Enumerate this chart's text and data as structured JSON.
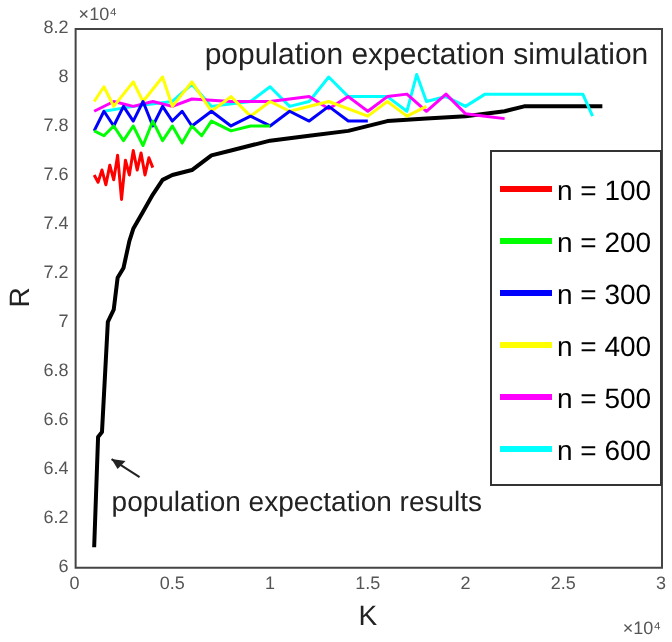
{
  "chart_data": {
    "type": "line",
    "title": "population expectation simulation",
    "xlabel": "K",
    "ylabel": "R",
    "annotations": [
      "population expectation results",
      "×10⁴",
      "×10⁴"
    ],
    "xlim": [
      0,
      3
    ],
    "xticks": [
      0,
      0.5,
      1,
      1.5,
      2,
      2.5,
      3
    ],
    "ylim": [
      6,
      8.2
    ],
    "yticks": [
      6,
      6.2,
      6.4,
      6.6,
      6.8,
      7,
      7.2,
      7.4,
      7.6,
      7.8,
      8,
      8.2
    ],
    "grid": false,
    "legend": "right",
    "marker": "none",
    "line_style": "solid",
    "series": [
      {
        "name": "n = 100",
        "color": "#ff0000",
        "x": [
          0.1,
          0.12,
          0.14,
          0.16,
          0.18,
          0.2,
          0.22,
          0.24,
          0.26,
          0.28,
          0.3,
          0.32,
          0.34,
          0.36,
          0.38,
          0.4
        ],
        "values": [
          7.6,
          7.57,
          7.62,
          7.56,
          7.64,
          7.58,
          7.68,
          7.5,
          7.66,
          7.6,
          7.7,
          7.62,
          7.69,
          7.6,
          7.67,
          7.63
        ]
      },
      {
        "name": "n = 200",
        "color": "#00ff00",
        "x": [
          0.1,
          0.15,
          0.2,
          0.25,
          0.3,
          0.35,
          0.4,
          0.45,
          0.5,
          0.55,
          0.6,
          0.65,
          0.7,
          0.8,
          0.9,
          1.0
        ],
        "values": [
          7.78,
          7.76,
          7.8,
          7.74,
          7.8,
          7.72,
          7.82,
          7.74,
          7.8,
          7.73,
          7.8,
          7.76,
          7.82,
          7.78,
          7.8,
          7.8
        ]
      },
      {
        "name": "n = 300",
        "color": "#0000ff",
        "x": [
          0.1,
          0.15,
          0.2,
          0.25,
          0.3,
          0.35,
          0.4,
          0.45,
          0.5,
          0.55,
          0.6,
          0.7,
          0.8,
          0.9,
          1.0,
          1.1,
          1.2,
          1.3,
          1.4,
          1.5
        ],
        "values": [
          7.78,
          7.86,
          7.8,
          7.88,
          7.82,
          7.9,
          7.8,
          7.88,
          7.82,
          7.86,
          7.8,
          7.86,
          7.8,
          7.84,
          7.8,
          7.86,
          7.82,
          7.88,
          7.82,
          7.82
        ]
      },
      {
        "name": "n = 400",
        "color": "#ffff00",
        "x": [
          0.1,
          0.15,
          0.2,
          0.3,
          0.35,
          0.45,
          0.5,
          0.6,
          0.7,
          0.8,
          0.9,
          1.0,
          1.1,
          1.3,
          1.5,
          1.6,
          1.7,
          1.8
        ],
        "values": [
          7.9,
          7.96,
          7.88,
          7.98,
          7.9,
          8.0,
          7.88,
          7.98,
          7.86,
          7.92,
          7.84,
          7.9,
          7.86,
          7.9,
          7.84,
          7.9,
          7.84,
          7.88
        ]
      },
      {
        "name": "n = 500",
        "color": "#ff00ff",
        "x": [
          0.1,
          0.2,
          0.3,
          0.4,
          0.5,
          0.6,
          0.8,
          1.0,
          1.2,
          1.3,
          1.4,
          1.5,
          1.6,
          1.7,
          1.8,
          1.9,
          2.0,
          2.1,
          2.2
        ],
        "values": [
          7.86,
          7.9,
          7.88,
          7.9,
          7.88,
          7.91,
          7.9,
          7.9,
          7.92,
          7.87,
          7.92,
          7.86,
          7.92,
          7.93,
          7.86,
          7.93,
          7.85,
          7.84,
          7.83
        ]
      },
      {
        "name": "n = 600",
        "color": "#00ffff",
        "x": [
          0.15,
          0.3,
          0.5,
          0.6,
          0.7,
          0.9,
          1.0,
          1.1,
          1.2,
          1.3,
          1.4,
          1.6,
          1.7,
          1.75,
          1.8,
          1.9,
          2.0,
          2.1,
          2.3,
          2.6,
          2.65
        ],
        "values": [
          7.86,
          7.88,
          7.9,
          7.97,
          7.88,
          7.9,
          7.96,
          7.88,
          7.9,
          8.0,
          7.92,
          7.92,
          7.86,
          8.01,
          7.9,
          7.92,
          7.88,
          7.93,
          7.93,
          7.93,
          7.84
        ]
      },
      {
        "color": "#000000",
        "x": [
          0.1,
          0.12,
          0.14,
          0.17,
          0.2,
          0.22,
          0.25,
          0.28,
          0.3,
          0.35,
          0.4,
          0.45,
          0.5,
          0.6,
          0.7,
          0.8,
          0.9,
          1.0,
          1.2,
          1.4,
          1.6,
          1.8,
          2.0,
          2.2,
          2.3,
          2.7
        ],
        "values": [
          6.08,
          6.53,
          6.55,
          7.0,
          7.05,
          7.18,
          7.22,
          7.33,
          7.38,
          7.45,
          7.52,
          7.58,
          7.6,
          7.62,
          7.68,
          7.7,
          7.72,
          7.74,
          7.76,
          7.78,
          7.82,
          7.83,
          7.84,
          7.86,
          7.88,
          7.88
        ]
      }
    ]
  }
}
